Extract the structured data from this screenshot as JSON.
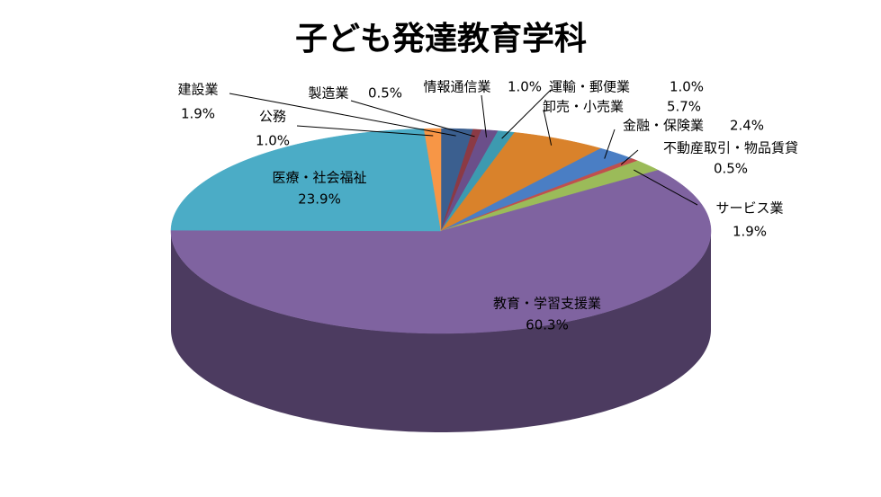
{
  "chart_data": {
    "type": "pie3d",
    "title": "子ども発達教育学科",
    "categories": [
      "建設業",
      "製造業",
      "情報通信業",
      "運輸・郵便業",
      "卸売・小売業",
      "金融・保険業",
      "不動産取引・物品賃貸",
      "サービス業",
      "教育・学習支援業",
      "医療・社会福祉",
      "公務"
    ],
    "values": [
      1.9,
      0.5,
      1.0,
      1.0,
      5.7,
      2.4,
      0.5,
      1.9,
      60.3,
      23.9,
      1.0
    ],
    "value_labels": [
      "1.9%",
      "0.5%",
      "1.0%",
      "1.0%",
      "5.7%",
      "2.4%",
      "0.5%",
      "1.9%",
      "60.3%",
      "23.9%",
      "1.0%"
    ],
    "colors": [
      "#3b5f8f",
      "#8b3a45",
      "#6b4f8a",
      "#3d9ab0",
      "#d9822b",
      "#4a7ec4",
      "#c0504d",
      "#9bbb59",
      "#7f63a0",
      "#4bacc6",
      "#f79646"
    ]
  }
}
